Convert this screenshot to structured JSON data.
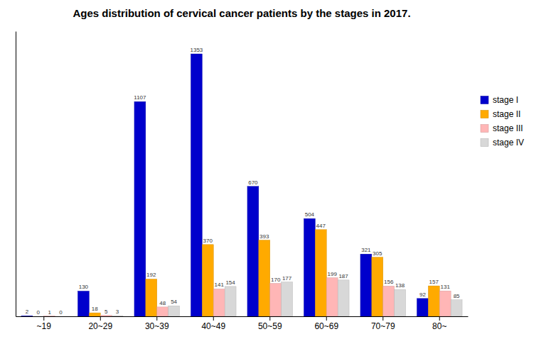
{
  "chart_data": {
    "type": "bar",
    "title": "Ages distribution of cervical cancer patients by the stages in 2017.",
    "categories": [
      "~19",
      "20~29",
      "30~39",
      "40~49",
      "50~59",
      "60~69",
      "70~79",
      "80~"
    ],
    "series": [
      {
        "name": "stage I",
        "color": "#0000cc",
        "values": [
          2,
          130,
          1107,
          1353,
          670,
          504,
          321,
          92
        ]
      },
      {
        "name": "stage II",
        "color": "#ffaa00",
        "values": [
          0,
          18,
          192,
          370,
          393,
          447,
          305,
          157
        ]
      },
      {
        "name": "stage III",
        "color": "#ffb6b6",
        "values": [
          1,
          5,
          48,
          141,
          170,
          199,
          156,
          131
        ]
      },
      {
        "name": "stage IV",
        "color": "#d8d8d8",
        "values": [
          0,
          3,
          54,
          154,
          177,
          187,
          138,
          85
        ]
      }
    ],
    "ylim": [
      0,
      1470
    ],
    "data_labels": true,
    "tick_labels": "x",
    "legend": "upper right"
  }
}
